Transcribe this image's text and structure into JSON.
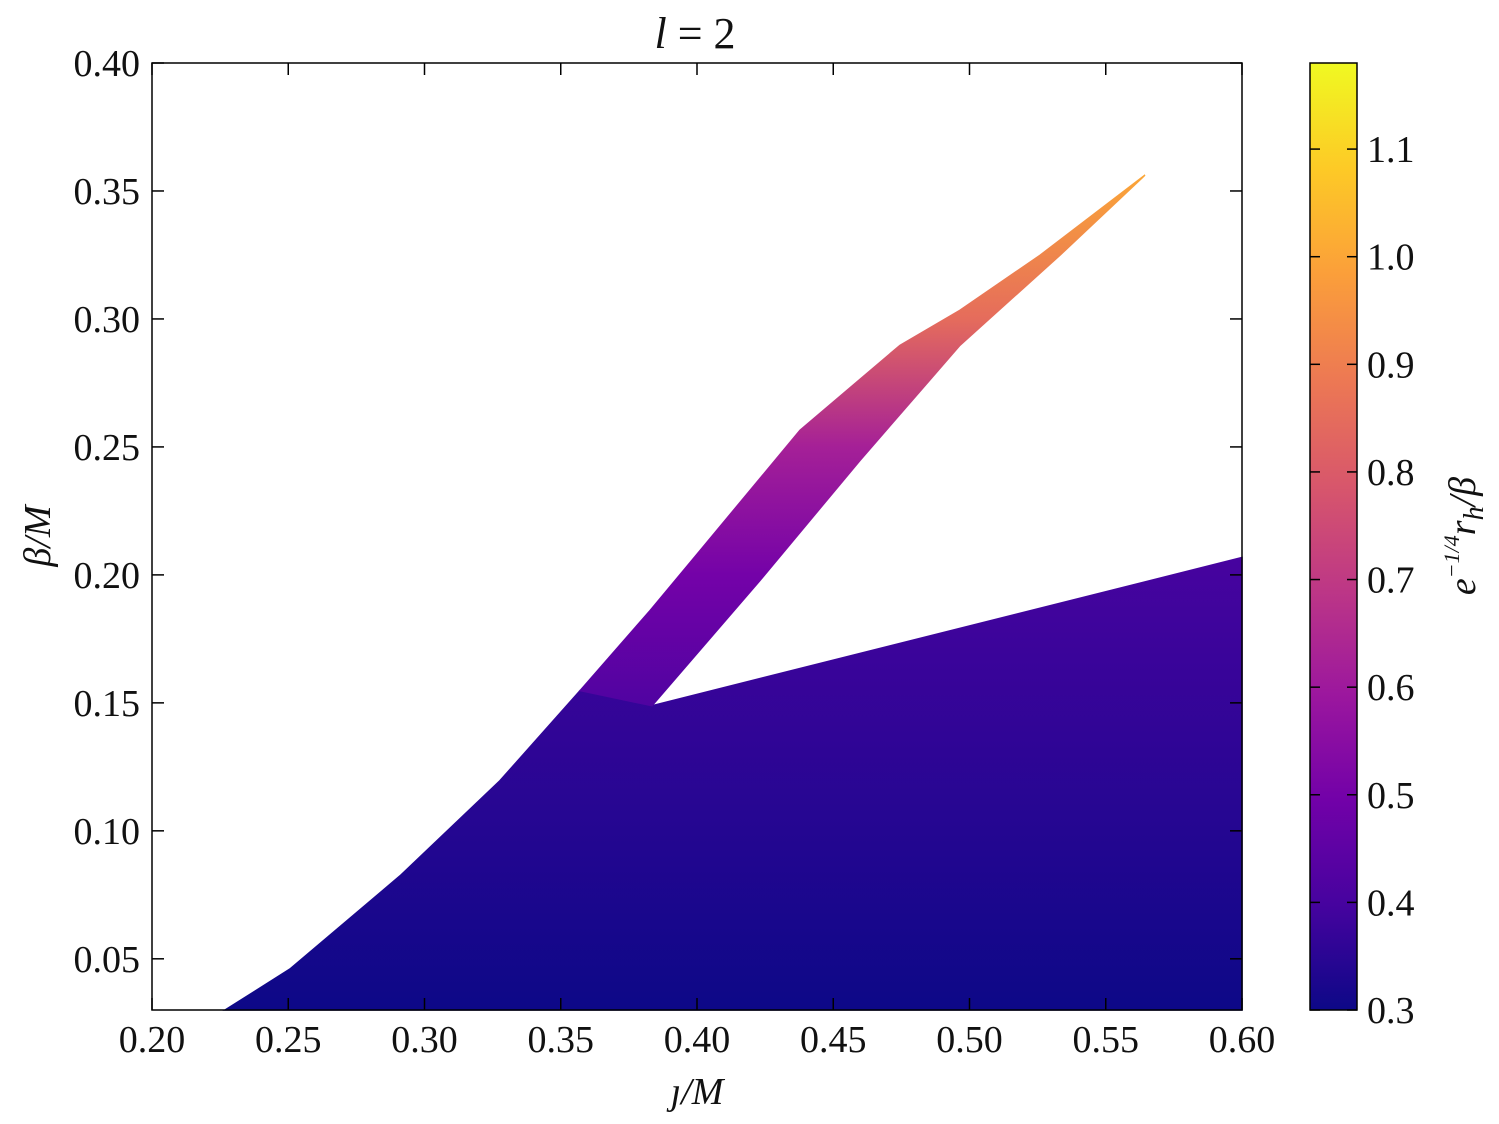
{
  "chart_data": {
    "type": "region",
    "title": {
      "italic": "l",
      "rest": " = 2"
    },
    "xlabel": "ȷ/M",
    "ylabel": "β/M",
    "colorbar_label": [
      "e",
      "−1/4",
      "r",
      "h",
      "/β"
    ],
    "xlim": [
      0.2,
      0.6
    ],
    "xticks": [
      {
        "value": 0.2,
        "label": "0.20"
      },
      0.25,
      {
        "value": 0.3,
        "label": "0.30"
      },
      0.35,
      {
        "value": 0.4,
        "label": "0.40"
      },
      0.45,
      {
        "value": 0.5,
        "label": "0.50"
      },
      0.55,
      {
        "value": 0.6,
        "label": "0.60"
      }
    ],
    "ylim": [
      0.03,
      0.4
    ],
    "yticks": [
      0.05,
      {
        "value": 0.1,
        "label": "0.10"
      },
      0.15,
      {
        "value": 0.2,
        "label": "0.20"
      },
      0.25,
      {
        "value": 0.3,
        "label": "0.30"
      },
      0.35,
      {
        "value": 0.4,
        "label": "0.40"
      }
    ],
    "clim": [
      0.3,
      1.18
    ],
    "cticks": [
      0.3,
      0.4,
      0.5,
      0.6,
      0.7,
      0.8,
      0.9,
      {
        "value": 1.0,
        "label": "1.0"
      },
      1.1
    ],
    "colormap": [
      "#0d0887",
      "#46039f",
      "#7201a8",
      "#9c179e",
      "#bd3786",
      "#d8576b",
      "#ed7953",
      "#fb9f3a",
      "#fdca26",
      "#f0f921"
    ],
    "regions": [
      {
        "x": [
          0.2268,
          0.2506,
          0.291,
          0.3277,
          0.3571,
          0.3835,
          0.6,
          0.6
        ],
        "y": [
          0.03,
          0.046,
          0.0824,
          0.1196,
          0.1548,
          0.1489,
          0.2068,
          0.03
        ],
        "profile_y": [
          0.03,
          0.1,
          0.2068
        ],
        "profile_z": [
          0.3,
          0.34,
          0.4
        ]
      },
      {
        "x": [
          0.3571,
          0.3828,
          0.4011,
          0.4378,
          0.4745,
          0.4965,
          0.5259,
          0.5644,
          0.5332,
          0.4965,
          0.4598,
          0.4231,
          0.3835
        ],
        "y": [
          0.1548,
          0.1861,
          0.2095,
          0.2565,
          0.2897,
          0.3034,
          0.3249,
          0.3562,
          0.3249,
          0.2897,
          0.2447,
          0.1978,
          0.1489
        ],
        "profile_y": [
          0.1489,
          0.2,
          0.25,
          0.3,
          0.3562
        ],
        "profile_z": [
          0.42,
          0.5,
          0.62,
          0.85,
          1.0
        ]
      }
    ]
  }
}
